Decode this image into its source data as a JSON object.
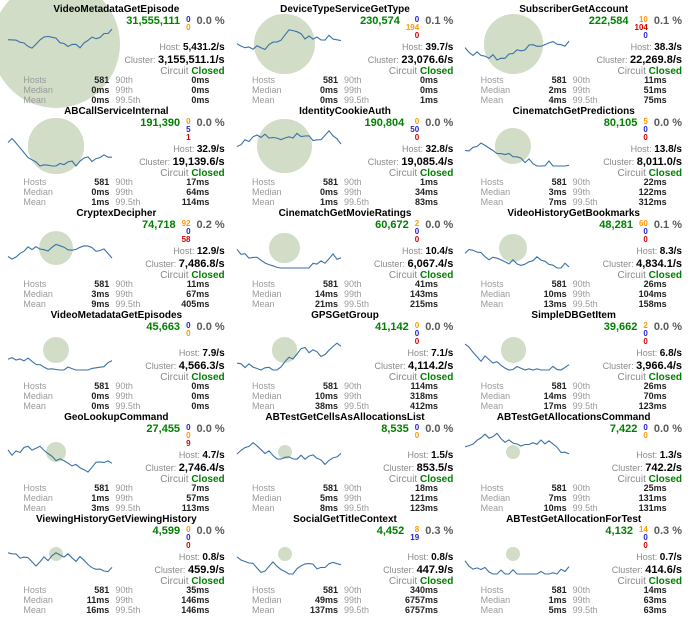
{
  "labels": {
    "host": "Host:",
    "cluster": "Cluster:",
    "circuit": "Circuit",
    "hosts": "Hosts",
    "median": "Median",
    "mean": "Mean",
    "p90": "90th",
    "p99": "99th",
    "p995": "99.5th"
  },
  "colors": {
    "success": "#008000",
    "short_circuited": "#2222cc",
    "timeout": "#ff9900",
    "failure": "#d40000",
    "circuit_closed": "#008000"
  },
  "panels": [
    {
      "name": "VideoMetadataGetEpisode",
      "success": "31,555,111",
      "error_pct": "0.0 %",
      "counts": [
        {
          "value": "0",
          "color": "#2222cc"
        },
        {
          "value": "0",
          "color": "#ff9900"
        },
        {
          "value": "",
          "color": "#d40000"
        }
      ],
      "host_rate": "5,431.2/s",
      "cluster_rate": "3,155,511.1/s",
      "circuit_status": "Closed",
      "stats": {
        "hosts": "581",
        "median": "0ms",
        "mean": "0ms",
        "p90": "0ms",
        "p99": "0ms",
        "p995": "0ms"
      }
    },
    {
      "name": "DeviceTypeServiceGetType",
      "success": "230,574",
      "error_pct": "0.1 %",
      "counts": [
        {
          "value": "0",
          "color": "#2222cc"
        },
        {
          "value": "194",
          "color": "#ff9900"
        },
        {
          "value": "0",
          "color": "#d40000"
        }
      ],
      "host_rate": "39.7/s",
      "cluster_rate": "23,076.6/s",
      "circuit_status": "Closed",
      "stats": {
        "hosts": "581",
        "median": "0ms",
        "mean": "0ms",
        "p90": "0ms",
        "p99": "0ms",
        "p995": "1ms"
      }
    },
    {
      "name": "SubscriberGetAccount",
      "success": "222,584",
      "error_pct": "0.1 %",
      "counts": [
        {
          "value": "10",
          "color": "#ff9900"
        },
        {
          "value": "104",
          "color": "#d40000"
        },
        {
          "value": "0",
          "color": "#2222cc"
        }
      ],
      "host_rate": "38.3/s",
      "cluster_rate": "22,269.8/s",
      "circuit_status": "Closed",
      "stats": {
        "hosts": "581",
        "median": "2ms",
        "mean": "4ms",
        "p90": "11ms",
        "p99": "51ms",
        "p995": "75ms"
      }
    },
    {
      "name": "ABCallServiceInternal",
      "success": "191,390",
      "error_pct": "0.0 %",
      "counts": [
        {
          "value": "0",
          "color": "#ff9900"
        },
        {
          "value": "5",
          "color": "#2222cc"
        },
        {
          "value": "1",
          "color": "#d40000"
        }
      ],
      "host_rate": "32.9/s",
      "cluster_rate": "19,139.6/s",
      "circuit_status": "Closed",
      "stats": {
        "hosts": "581",
        "median": "0ms",
        "mean": "1ms",
        "p90": "17ms",
        "p99": "64ms",
        "p995": "114ms"
      }
    },
    {
      "name": "IdentityCookieAuth",
      "success": "190,804",
      "error_pct": "0.0 %",
      "counts": [
        {
          "value": "0",
          "color": "#ff9900"
        },
        {
          "value": "50",
          "color": "#2222cc"
        },
        {
          "value": "0",
          "color": "#d40000"
        }
      ],
      "host_rate": "32.8/s",
      "cluster_rate": "19,085.4/s",
      "circuit_status": "Closed",
      "stats": {
        "hosts": "581",
        "median": "0ms",
        "mean": "1ms",
        "p90": "1ms",
        "p99": "34ms",
        "p995": "83ms"
      }
    },
    {
      "name": "CinematchGetPredictions",
      "success": "80,105",
      "error_pct": "0.0 %",
      "counts": [
        {
          "value": "5",
          "color": "#ff9900"
        },
        {
          "value": "0",
          "color": "#2222cc"
        },
        {
          "value": "0",
          "color": "#d40000"
        }
      ],
      "host_rate": "13.8/s",
      "cluster_rate": "8,011.0/s",
      "circuit_status": "Closed",
      "stats": {
        "hosts": "581",
        "median": "3ms",
        "mean": "7ms",
        "p90": "22ms",
        "p99": "122ms",
        "p995": "312ms"
      }
    },
    {
      "name": "CryptexDecipher",
      "success": "74,718",
      "error_pct": "0.2 %",
      "counts": [
        {
          "value": "92",
          "color": "#ff9900"
        },
        {
          "value": "0",
          "color": "#2222cc"
        },
        {
          "value": "58",
          "color": "#d40000"
        }
      ],
      "host_rate": "12.9/s",
      "cluster_rate": "7,486.8/s",
      "circuit_status": "Closed",
      "stats": {
        "hosts": "581",
        "median": "3ms",
        "mean": "9ms",
        "p90": "11ms",
        "p99": "67ms",
        "p995": "405ms"
      }
    },
    {
      "name": "CinematchGetMovieRatings",
      "success": "60,672",
      "error_pct": "0.0 %",
      "counts": [
        {
          "value": "2",
          "color": "#ff9900"
        },
        {
          "value": "0",
          "color": "#2222cc"
        },
        {
          "value": "0",
          "color": "#d40000"
        }
      ],
      "host_rate": "10.4/s",
      "cluster_rate": "6,067.4/s",
      "circuit_status": "Closed",
      "stats": {
        "hosts": "581",
        "median": "14ms",
        "mean": "21ms",
        "p90": "41ms",
        "p99": "143ms",
        "p995": "215ms"
      }
    },
    {
      "name": "VideoHistoryGetBookmarks",
      "success": "48,281",
      "error_pct": "0.1 %",
      "counts": [
        {
          "value": "60",
          "color": "#ff9900"
        },
        {
          "value": "0",
          "color": "#2222cc"
        },
        {
          "value": "0",
          "color": "#d40000"
        }
      ],
      "host_rate": "8.3/s",
      "cluster_rate": "4,834.1/s",
      "circuit_status": "Closed",
      "stats": {
        "hosts": "581",
        "median": "10ms",
        "mean": "13ms",
        "p90": "26ms",
        "p99": "104ms",
        "p995": "158ms"
      }
    },
    {
      "name": "VideoMetadataGetEpisodes",
      "success": "45,663",
      "error_pct": "0.0 %",
      "counts": [
        {
          "value": "0",
          "color": "#2222cc"
        },
        {
          "value": "0",
          "color": "#ff9900"
        },
        {
          "value": "",
          "color": "#d40000"
        }
      ],
      "host_rate": "7.9/s",
      "cluster_rate": "4,566.3/s",
      "circuit_status": "Closed",
      "stats": {
        "hosts": "581",
        "median": "0ms",
        "mean": "0ms",
        "p90": "0ms",
        "p99": "0ms",
        "p995": "0ms"
      }
    },
    {
      "name": "GPSGetGroup",
      "success": "41,142",
      "error_pct": "0.0 %",
      "counts": [
        {
          "value": "0",
          "color": "#ff9900"
        },
        {
          "value": "0",
          "color": "#2222cc"
        },
        {
          "value": "0",
          "color": "#d40000"
        }
      ],
      "host_rate": "7.1/s",
      "cluster_rate": "4,114.2/s",
      "circuit_status": "Closed",
      "stats": {
        "hosts": "581",
        "median": "10ms",
        "mean": "38ms",
        "p90": "114ms",
        "p99": "318ms",
        "p995": "412ms"
      }
    },
    {
      "name": "SimpleDBGetItem",
      "success": "39,662",
      "error_pct": "0.0 %",
      "counts": [
        {
          "value": "2",
          "color": "#ff9900"
        },
        {
          "value": "0",
          "color": "#2222cc"
        },
        {
          "value": "0",
          "color": "#d40000"
        }
      ],
      "host_rate": "6.8/s",
      "cluster_rate": "3,966.4/s",
      "circuit_status": "Closed",
      "stats": {
        "hosts": "581",
        "median": "14ms",
        "mean": "17ms",
        "p90": "26ms",
        "p99": "70ms",
        "p995": "123ms"
      }
    },
    {
      "name": "GeoLookupCommand",
      "success": "27,455",
      "error_pct": "0.0 %",
      "counts": [
        {
          "value": "0",
          "color": "#2222cc"
        },
        {
          "value": "0",
          "color": "#ff9900"
        },
        {
          "value": "9",
          "color": "#d40000"
        }
      ],
      "host_rate": "4.7/s",
      "cluster_rate": "2,746.4/s",
      "circuit_status": "Closed",
      "stats": {
        "hosts": "581",
        "median": "1ms",
        "mean": "3ms",
        "p90": "7ms",
        "p99": "57ms",
        "p995": "113ms"
      }
    },
    {
      "name": "ABTestGetCellsAsAllocationsList",
      "success": "8,535",
      "error_pct": "0.0 %",
      "counts": [
        {
          "value": "0",
          "color": "#2222cc"
        },
        {
          "value": "0",
          "color": "#ff9900"
        },
        {
          "value": "",
          "color": "#d40000"
        }
      ],
      "host_rate": "1.5/s",
      "cluster_rate": "853.5/s",
      "circuit_status": "Closed",
      "stats": {
        "hosts": "581",
        "median": "5ms",
        "mean": "8ms",
        "p90": "18ms",
        "p99": "121ms",
        "p995": "123ms"
      }
    },
    {
      "name": "ABTestGetAllocationsCommand",
      "success": "7,422",
      "error_pct": "0.0 %",
      "counts": [
        {
          "value": "0",
          "color": "#2222cc"
        },
        {
          "value": "0",
          "color": "#ff9900"
        },
        {
          "value": "",
          "color": "#d40000"
        }
      ],
      "host_rate": "1.3/s",
      "cluster_rate": "742.2/s",
      "circuit_status": "Closed",
      "stats": {
        "hosts": "581",
        "median": "7ms",
        "mean": "10ms",
        "p90": "25ms",
        "p99": "131ms",
        "p995": "131ms"
      }
    },
    {
      "name": "ViewingHistoryGetViewingHistory",
      "success": "4,599",
      "error_pct": "0.0 %",
      "counts": [
        {
          "value": "0",
          "color": "#ff9900"
        },
        {
          "value": "0",
          "color": "#2222cc"
        },
        {
          "value": "0",
          "color": "#d40000"
        }
      ],
      "host_rate": "0.8/s",
      "cluster_rate": "459.9/s",
      "circuit_status": "Closed",
      "stats": {
        "hosts": "581",
        "median": "11ms",
        "mean": "16ms",
        "p90": "35ms",
        "p99": "146ms",
        "p995": "146ms"
      }
    },
    {
      "name": "SocialGetTitleContext",
      "success": "4,452",
      "error_pct": "0.3 %",
      "counts": [
        {
          "value": "8",
          "color": "#ff9900"
        },
        {
          "value": "19",
          "color": "#2222cc"
        },
        {
          "value": "",
          "color": "#d40000"
        }
      ],
      "host_rate": "0.8/s",
      "cluster_rate": "447.9/s",
      "circuit_status": "Closed",
      "stats": {
        "hosts": "581",
        "median": "49ms",
        "mean": "137ms",
        "p90": "340ms",
        "p99": "6757ms",
        "p995": "6757ms"
      }
    },
    {
      "name": "ABTestGetAllocationForTest",
      "success": "4,132",
      "error_pct": "0.3 %",
      "counts": [
        {
          "value": "14",
          "color": "#ff9900"
        },
        {
          "value": "0",
          "color": "#2222cc"
        },
        {
          "value": "0",
          "color": "#d40000"
        }
      ],
      "host_rate": "0.7/s",
      "cluster_rate": "414.6/s",
      "circuit_status": "Closed",
      "stats": {
        "hosts": "581",
        "median": "1ms",
        "mean": "5ms",
        "p90": "14ms",
        "p99": "63ms",
        "p995": "63ms"
      }
    }
  ]
}
